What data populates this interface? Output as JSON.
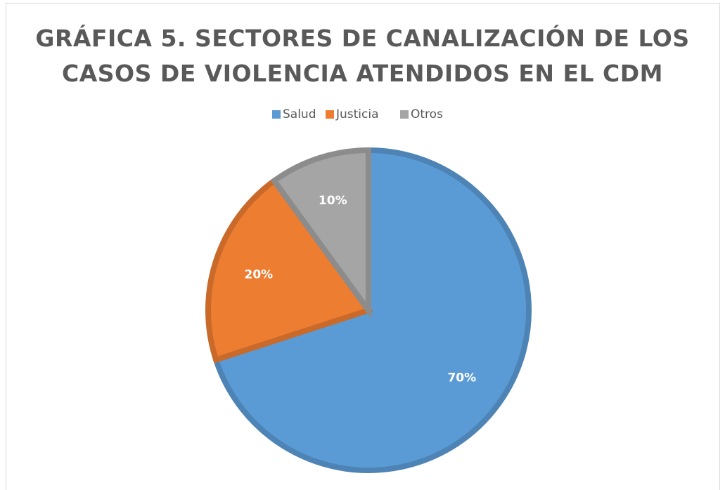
{
  "chart_data": {
    "type": "pie",
    "title": "GRÁFICA 5. SECTORES DE CANALIZACIÓN DE LOS\nCASOS DE VIOLENCIA ATENDIDOS EN EL CDM",
    "categories": [
      "Salud",
      "Justicia",
      "Otros"
    ],
    "values": [
      70,
      20,
      10
    ],
    "value_labels": [
      "70%",
      "20%",
      "10%"
    ],
    "colors": [
      "#5b9bd5",
      "#ed7d31",
      "#a5a5a5"
    ],
    "legend": "top"
  }
}
